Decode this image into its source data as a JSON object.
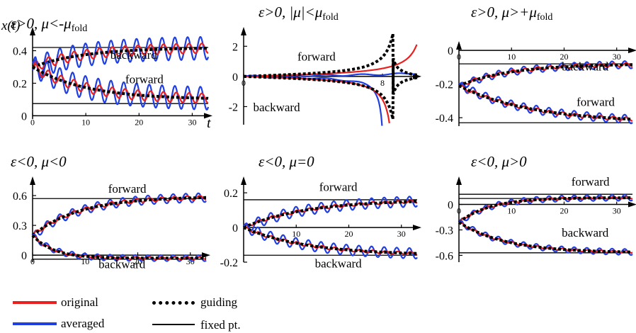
{
  "colors": {
    "original": "#e8211f",
    "averaged": "#1f3fe0",
    "guiding": "#000000",
    "fixed_point": "#000000"
  },
  "legend": {
    "original": "original",
    "averaged": "averaged",
    "guiding": "guiding",
    "fixed_point": "fixed pt."
  },
  "chart_data": [
    {
      "type": "line",
      "panel": "a",
      "title_parts": [
        "ε>0,  μ<-μ",
        "fold"
      ],
      "ylabel": "x(t)",
      "xlabel": "t",
      "xlim": [
        0,
        33
      ],
      "ylim": [
        -0.02,
        0.52
      ],
      "xticks": [
        0,
        10,
        20,
        30
      ],
      "yticks": [
        0,
        0.2,
        0.4
      ],
      "ytick_labels": [
        "0",
        "0.2",
        "0.4"
      ],
      "fixed_points": [
        0.42,
        0.075
      ],
      "curve_labels": [
        {
          "text": "backward",
          "x": 19,
          "y": 0.35
        },
        {
          "text": "forward",
          "x": 21,
          "y": 0.2
        }
      ],
      "branches": [
        {
          "name": "backward",
          "kind": "approach",
          "x0": 0,
          "start": 0.3,
          "target": 0.42,
          "tau": 10,
          "osc_amp": 0.03,
          "osc_period": 2.4,
          "blue_amp": 0.07
        },
        {
          "name": "forward",
          "kind": "approach",
          "x0": 0,
          "start": 0.3,
          "target": 0.1,
          "tau": 10,
          "osc_amp": 0.03,
          "osc_period": 2.4,
          "blue_amp": 0.07
        }
      ]
    },
    {
      "type": "line",
      "panel": "b",
      "title_parts": [
        "ε>0,  |μ|<μ",
        "fold"
      ],
      "xlim": [
        0,
        10
      ],
      "ylim": [
        -3.2,
        3.0
      ],
      "xticks": [
        0,
        8
      ],
      "yticks": [
        -2,
        0,
        2
      ],
      "ytick_labels": [
        "-2",
        "0",
        "2"
      ],
      "fixed_points": [],
      "curve_labels": [
        {
          "text": "forward",
          "x": 4.2,
          "y": 1.05
        },
        {
          "text": "backward",
          "x": 1.9,
          "y": -2.3
        }
      ],
      "branches": [
        {
          "name": "forward",
          "kind": "blowup",
          "sign": 1,
          "x_end": 10
        },
        {
          "name": "backward",
          "kind": "blowup",
          "sign": -1,
          "x_end": 10
        }
      ]
    },
    {
      "type": "line",
      "panel": "c",
      "title_parts": [
        "ε>0,  μ>+μ",
        "fold"
      ],
      "xlim": [
        0,
        33
      ],
      "ylim": [
        -0.45,
        0.03
      ],
      "xticks": [
        0,
        10,
        20,
        30
      ],
      "yticks": [
        0,
        -0.2,
        -0.4
      ],
      "ytick_labels": [
        "0",
        "-0.2",
        "-0.4"
      ],
      "fixed_points": [
        -0.08,
        -0.43
      ],
      "curve_labels": [
        {
          "text": "backward",
          "x": 24,
          "y": -0.12
        },
        {
          "text": "forward",
          "x": 26,
          "y": -0.33
        }
      ],
      "branches": [
        {
          "name": "backward",
          "kind": "approach",
          "x0": 0,
          "start": -0.21,
          "target": -0.08,
          "tau": 10,
          "osc_amp": 0.01,
          "osc_period": 2.4,
          "blue_amp": 0.022
        },
        {
          "name": "forward",
          "kind": "approach",
          "x0": 0,
          "start": -0.21,
          "target": -0.43,
          "tau": 14,
          "osc_amp": 0.01,
          "osc_period": 2.4,
          "blue_amp": 0.025
        }
      ]
    },
    {
      "type": "line",
      "panel": "d",
      "title_parts": [
        "ε<0,  μ<0",
        ""
      ],
      "xlim": [
        0,
        33
      ],
      "ylim": [
        -0.07,
        0.75
      ],
      "xticks": [
        0,
        10,
        20,
        30
      ],
      "yticks": [
        0,
        0.3,
        0.6
      ],
      "ytick_labels": [
        "0",
        "0.3",
        "0.6"
      ],
      "fixed_points": [
        0.57,
        -0.04
      ],
      "curve_labels": [
        {
          "text": "forward",
          "x": 18,
          "y": 0.63
        },
        {
          "text": "backward",
          "x": 17,
          "y": -0.13
        }
      ],
      "branches": [
        {
          "name": "forward",
          "kind": "approach",
          "x0": 0,
          "start": 0.2,
          "target": 0.59,
          "tau": 9,
          "osc_amp": 0.02,
          "osc_period": 2.4,
          "blue_amp": 0.045
        },
        {
          "name": "backward",
          "kind": "approach",
          "x0": 0,
          "start": 0.2,
          "target": -0.03,
          "tau": 4,
          "osc_amp": 0.012,
          "osc_period": 2.4,
          "blue_amp": 0.03
        }
      ]
    },
    {
      "type": "line",
      "panel": "e",
      "title_parts": [
        "ε<0,  μ=0",
        ""
      ],
      "xlim": [
        0,
        33
      ],
      "ylim": [
        -0.2,
        0.27
      ],
      "xticks": [
        10,
        20,
        30
      ],
      "yticks": [
        -0.2,
        0,
        0.2
      ],
      "ytick_labels": [
        "-0.2",
        "0",
        "0.2"
      ],
      "fixed_points": [
        0.16,
        -0.16
      ],
      "curve_labels": [
        {
          "text": "forward",
          "x": 18,
          "y": 0.21
        },
        {
          "text": "backward",
          "x": 18,
          "y": -0.23
        }
      ],
      "branches": [
        {
          "name": "forward",
          "kind": "approach",
          "x0": 0,
          "start": 0,
          "target": 0.16,
          "tau": 12,
          "osc_amp": 0.008,
          "osc_period": 2.4,
          "blue_amp": 0.03
        },
        {
          "name": "backward",
          "kind": "approach",
          "x0": 0,
          "start": 0,
          "target": -0.16,
          "tau": 12,
          "osc_amp": 0.008,
          "osc_period": 2.4,
          "blue_amp": 0.03
        }
      ]
    },
    {
      "type": "line",
      "panel": "f",
      "title_parts": [
        "ε<0,  μ>0",
        ""
      ],
      "xlim": [
        0,
        33
      ],
      "ylim": [
        -0.68,
        0.28
      ],
      "xticks": [
        0,
        10,
        20,
        30
      ],
      "yticks": [
        0,
        -0.3,
        -0.6
      ],
      "ytick_labels": [
        "0",
        "-0.3",
        "-0.6"
      ],
      "fixed_points": [
        0.12,
        0.07,
        -0.57
      ],
      "curve_labels": [
        {
          "text": "forward",
          "x": 25,
          "y": 0.22
        },
        {
          "text": "backward",
          "x": 24,
          "y": -0.38
        }
      ],
      "branches": [
        {
          "name": "forward",
          "kind": "approach",
          "x0": 0,
          "start": -0.21,
          "target": 0.08,
          "tau": 6,
          "osc_amp": 0.012,
          "osc_period": 2.4,
          "blue_amp": 0.035
        },
        {
          "name": "backward",
          "kind": "approach",
          "x0": 0,
          "start": -0.21,
          "target": -0.57,
          "tau": 9,
          "osc_amp": 0.012,
          "osc_period": 2.4,
          "blue_amp": 0.035
        }
      ]
    }
  ]
}
